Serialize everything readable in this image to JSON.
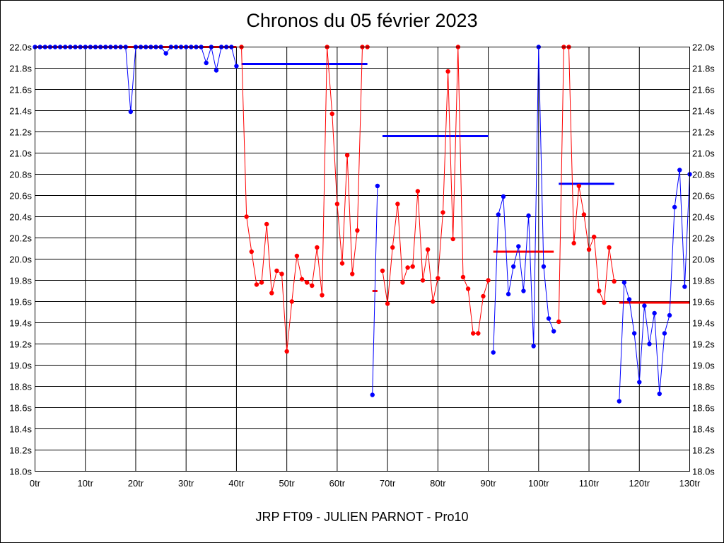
{
  "title": "Chronos du 05 février 2023",
  "footer": "JRP FT09 - JULIEN PARNOT - Pro10",
  "colors": {
    "red": "#ff0000",
    "blue": "#0000ff",
    "grid": "#000000",
    "background": "#ffffff"
  },
  "chart_data": {
    "type": "line",
    "title": "Chronos du 05 février 2023",
    "xlim": [
      0,
      130
    ],
    "ylim": [
      18.0,
      22.0
    ],
    "x_ticks": [
      0,
      10,
      20,
      30,
      40,
      50,
      60,
      70,
      80,
      90,
      100,
      110,
      120,
      130
    ],
    "x_tick_labels": [
      "0tr",
      "10tr",
      "20tr",
      "30tr",
      "40tr",
      "50tr",
      "60tr",
      "70tr",
      "80tr",
      "90tr",
      "100tr",
      "110tr",
      "120tr",
      "130tr"
    ],
    "y_ticks": [
      18.0,
      18.2,
      18.4,
      18.6,
      18.8,
      19.0,
      19.2,
      19.4,
      19.6,
      19.8,
      20.0,
      20.2,
      20.4,
      20.6,
      20.8,
      21.0,
      21.2,
      21.4,
      21.6,
      21.8,
      22.0
    ],
    "y_tick_labels": [
      "18.0s",
      "18.2s",
      "18.4s",
      "18.6s",
      "18.8s",
      "19.0s",
      "19.2s",
      "19.4s",
      "19.6s",
      "19.8s",
      "20.0s",
      "20.2s",
      "20.4s",
      "20.6s",
      "20.8s",
      "21.0s",
      "21.2s",
      "21.4s",
      "21.6s",
      "21.8s",
      "22.0s"
    ],
    "grid": true,
    "series": [
      {
        "color": "#0000ff",
        "x": [
          0,
          1,
          2,
          3,
          4,
          5,
          6,
          7,
          8,
          9,
          10,
          11,
          12,
          13,
          14,
          15,
          16,
          17,
          18,
          19,
          20,
          21,
          22,
          23,
          24,
          25,
          26,
          27,
          28,
          29,
          30,
          31,
          32,
          33,
          34,
          35,
          36,
          37,
          38,
          39,
          40
        ],
        "y": [
          22.0,
          22.0,
          22.0,
          22.0,
          22.0,
          22.0,
          22.0,
          22.0,
          22.0,
          22.0,
          22.0,
          22.0,
          22.0,
          22.0,
          22.0,
          22.0,
          22.0,
          22.0,
          22.0,
          21.39,
          22.0,
          22.0,
          22.0,
          22.0,
          22.0,
          22.0,
          21.94,
          22.0,
          22.0,
          22.0,
          22.0,
          22.0,
          22.0,
          22.0,
          21.85,
          22.0,
          21.78,
          22.0,
          22.0,
          22.0,
          21.82
        ]
      },
      {
        "color": "#ff0000",
        "x": [
          41,
          42,
          43,
          44,
          45,
          46,
          47,
          48,
          49,
          50,
          51,
          52,
          53,
          54,
          55,
          56,
          57,
          58,
          59,
          60,
          61,
          62,
          63,
          64,
          65,
          66
        ],
        "y": [
          22.0,
          20.4,
          20.07,
          19.76,
          19.78,
          20.33,
          19.68,
          19.89,
          19.86,
          19.13,
          19.6,
          20.03,
          19.81,
          19.78,
          19.75,
          20.11,
          19.66,
          22.0,
          21.37,
          20.52,
          19.96,
          20.98,
          19.86,
          20.27,
          22.0,
          22.0
        ]
      },
      {
        "color": "#0000ff",
        "x": [
          67,
          68
        ],
        "y": [
          18.72,
          20.69
        ]
      },
      {
        "color": "#ff0000",
        "x": [
          69,
          70,
          71,
          72,
          73,
          74,
          75,
          76,
          77,
          78,
          79,
          80,
          81,
          82,
          83,
          84,
          85,
          86,
          87,
          88,
          89,
          90
        ],
        "y": [
          19.89,
          19.58,
          20.11,
          20.52,
          19.78,
          19.92,
          19.93,
          20.64,
          19.8,
          20.09,
          19.6,
          19.82,
          20.44,
          21.77,
          20.19,
          22.0,
          19.83,
          19.72,
          19.3,
          19.3,
          19.65,
          19.8
        ]
      },
      {
        "color": "#0000ff",
        "x": [
          91,
          92,
          93,
          94,
          95,
          96,
          97,
          98,
          99,
          100,
          101,
          102,
          103
        ],
        "y": [
          19.12,
          20.42,
          20.59,
          19.67,
          19.93,
          20.12,
          19.7,
          20.41,
          19.18,
          22.0,
          19.93,
          19.44,
          19.32
        ]
      },
      {
        "color": "#ff0000",
        "x": [
          104,
          105,
          106,
          107,
          108,
          109,
          110,
          111,
          112,
          113,
          114,
          115
        ],
        "y": [
          19.41,
          22.0,
          22.0,
          20.15,
          20.69,
          20.42,
          20.09,
          20.21,
          19.7,
          19.59,
          20.11,
          19.79
        ]
      },
      {
        "color": "#0000ff",
        "x": [
          116,
          117,
          118,
          119,
          120,
          121,
          122,
          123,
          124,
          125,
          126,
          127,
          128,
          129,
          130
        ],
        "y": [
          18.66,
          19.78,
          19.62,
          19.3,
          18.84,
          19.56,
          19.2,
          19.49,
          18.73,
          19.3,
          19.47,
          20.49,
          20.84,
          19.74,
          20.8
        ]
      }
    ],
    "averages": [
      {
        "color": "#ff0000",
        "x": [
          0,
          40
        ],
        "y": 22.0
      },
      {
        "color": "#0000ff",
        "x": [
          41,
          66
        ],
        "y": 21.84
      },
      {
        "color": "#ff0000",
        "x": [
          67,
          68
        ],
        "y": 19.7
      },
      {
        "color": "#0000ff",
        "x": [
          69,
          90
        ],
        "y": 21.16
      },
      {
        "color": "#ff0000",
        "x": [
          91,
          103
        ],
        "y": 20.07
      },
      {
        "color": "#0000ff",
        "x": [
          104,
          115
        ],
        "y": 20.71
      },
      {
        "color": "#ff0000",
        "x": [
          116,
          130
        ],
        "y": 19.59
      }
    ]
  }
}
